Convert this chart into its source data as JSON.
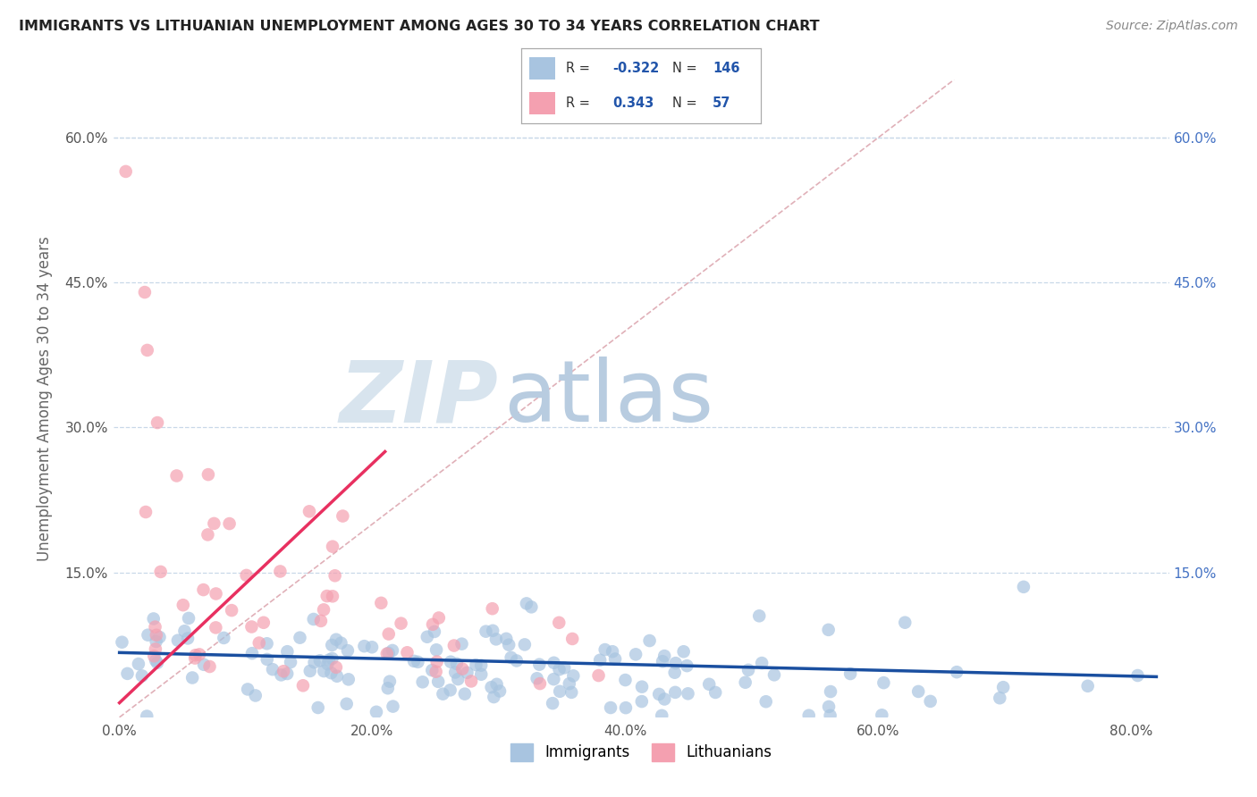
{
  "title": "IMMIGRANTS VS LITHUANIAN UNEMPLOYMENT AMONG AGES 30 TO 34 YEARS CORRELATION CHART",
  "source": "Source: ZipAtlas.com",
  "ylabel": "Unemployment Among Ages 30 to 34 years",
  "ylim": [
    0.0,
    0.66
  ],
  "xlim": [
    -0.005,
    0.83
  ],
  "legend_blue_R": "-0.322",
  "legend_blue_N": "146",
  "legend_pink_R": "0.343",
  "legend_pink_N": "57",
  "blue_color": "#a8c4e0",
  "pink_color": "#f4a0b0",
  "trendline_blue_color": "#1a4fa0",
  "trendline_pink_color": "#e83060",
  "diagonal_color": "#e0b0b8",
  "watermark_zip_color": "#d0dce8",
  "watermark_atlas_color": "#b0c8e0",
  "ytick_vals": [
    0.0,
    0.15,
    0.3,
    0.45,
    0.6
  ],
  "xtick_vals": [
    0.0,
    0.2,
    0.4,
    0.6,
    0.8
  ],
  "right_tick_color": "#4472c4",
  "grid_color": "#c8d8e8"
}
